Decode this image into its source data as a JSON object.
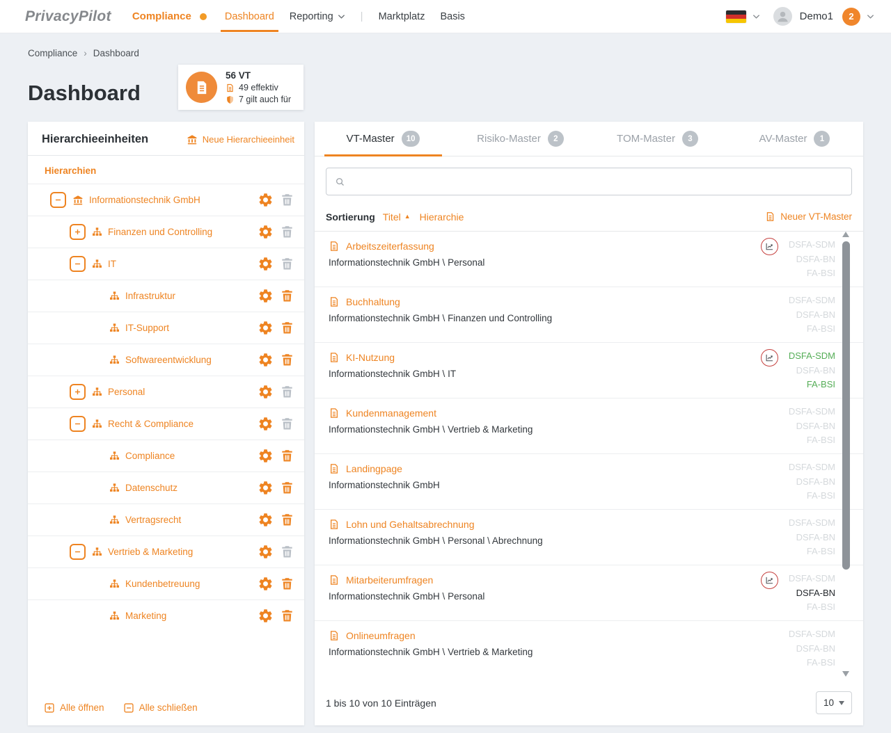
{
  "colors": {
    "accent_orange": "#ee8422",
    "badge_green": "#54ad56",
    "badge_gray": "#d5d9dc",
    "badge_dark": "#25292d",
    "tab_badge_bg": "#bcc2c8",
    "trend_circle_red": "#c5403e"
  },
  "navbar": {
    "logo": "PrivacyPilot",
    "product": "Compliance",
    "dashboard": "Dashboard",
    "reporting": "Reporting",
    "divider": "|",
    "marktplatz": "Marktplatz",
    "basis": "Basis",
    "user_name": "Demo1",
    "notification_count": "2"
  },
  "breadcrumb": {
    "parent": "Compliance",
    "separator": "›",
    "current": "Dashboard"
  },
  "page_title": "Dashboard",
  "stats_card": {
    "total": "56 VT",
    "effective": "49 effektiv",
    "also_applies": "7 gilt auch für"
  },
  "left_panel": {
    "title": "Hierarchieeinheiten",
    "new_link": "Neue Hierarchieeinheit",
    "group_label": "Hierarchien",
    "tree": [
      {
        "label": "Informationstechnik GmbH",
        "level": 0,
        "toggle": "minus",
        "icon": "bank",
        "deletable": false
      },
      {
        "label": "Finanzen und Controlling",
        "level": 1,
        "toggle": "plus",
        "icon": "sitemap",
        "deletable": false
      },
      {
        "label": "IT",
        "level": 1,
        "toggle": "minus",
        "icon": "sitemap",
        "deletable": false
      },
      {
        "label": "Infrastruktur",
        "level": 2,
        "toggle": null,
        "icon": "sitemap",
        "deletable": true
      },
      {
        "label": "IT-Support",
        "level": 2,
        "toggle": null,
        "icon": "sitemap",
        "deletable": true
      },
      {
        "label": "Softwareentwicklung",
        "level": 2,
        "toggle": null,
        "icon": "sitemap",
        "deletable": true
      },
      {
        "label": "Personal",
        "level": 1,
        "toggle": "plus",
        "icon": "sitemap",
        "deletable": false
      },
      {
        "label": "Recht & Compliance",
        "level": 1,
        "toggle": "minus",
        "icon": "sitemap",
        "deletable": false
      },
      {
        "label": "Compliance",
        "level": 2,
        "toggle": null,
        "icon": "sitemap",
        "deletable": true
      },
      {
        "label": "Datenschutz",
        "level": 2,
        "toggle": null,
        "icon": "sitemap",
        "deletable": true
      },
      {
        "label": "Vertragsrecht",
        "level": 2,
        "toggle": null,
        "icon": "sitemap",
        "deletable": true
      },
      {
        "label": "Vertrieb & Marketing",
        "level": 1,
        "toggle": "minus",
        "icon": "sitemap",
        "deletable": false
      },
      {
        "label": "Kundenbetreuung",
        "level": 2,
        "toggle": null,
        "icon": "sitemap",
        "deletable": true
      },
      {
        "label": "Marketing",
        "level": 2,
        "toggle": null,
        "icon": "sitemap",
        "deletable": true
      }
    ],
    "open_all": "Alle öffnen",
    "close_all": "Alle schließen"
  },
  "right_panel": {
    "tabs": [
      {
        "label": "VT-Master",
        "count": "10",
        "active": true
      },
      {
        "label": "Risiko-Master",
        "count": "2",
        "active": false
      },
      {
        "label": "TOM-Master",
        "count": "3",
        "active": false
      },
      {
        "label": "AV-Master",
        "count": "1",
        "active": false
      }
    ],
    "search": {
      "placeholder": "",
      "value": ""
    },
    "sort": {
      "label": "Sortierung",
      "title_option": "Titel",
      "title_arrow": "▲",
      "hierarchy_option": "Hierarchie"
    },
    "new_link": "Neuer VT-Master",
    "badge_names": [
      "DSFA-SDM",
      "DSFA-BN",
      "FA-BSI"
    ],
    "rows": [
      {
        "title": "Arbeitszeiterfassung",
        "path": "Informationstechnik GmbH \\ Personal",
        "trend_icon": true,
        "badges": [
          "gray",
          "gray",
          "gray"
        ]
      },
      {
        "title": "Buchhaltung",
        "path": "Informationstechnik GmbH \\ Finanzen und Controlling",
        "trend_icon": false,
        "badges": [
          "gray",
          "gray",
          "gray"
        ]
      },
      {
        "title": "KI-Nutzung",
        "path": "Informationstechnik GmbH \\ IT",
        "trend_icon": true,
        "badges": [
          "green",
          "gray",
          "green"
        ]
      },
      {
        "title": "Kundenmanagement",
        "path": "Informationstechnik GmbH \\ Vertrieb & Marketing",
        "trend_icon": false,
        "badges": [
          "gray",
          "gray",
          "gray"
        ]
      },
      {
        "title": "Landingpage",
        "path": "Informationstechnik GmbH",
        "trend_icon": false,
        "badges": [
          "gray",
          "gray",
          "gray"
        ]
      },
      {
        "title": "Lohn und Gehaltsabrechnung",
        "path": "Informationstechnik GmbH \\ Personal \\ Abrechnung",
        "trend_icon": false,
        "badges": [
          "gray",
          "gray",
          "gray"
        ]
      },
      {
        "title": "Mitarbeiterumfragen",
        "path": "Informationstechnik GmbH \\ Personal",
        "trend_icon": true,
        "badges": [
          "gray",
          "dark",
          "gray"
        ]
      },
      {
        "title": "Onlineumfragen",
        "path": "Informationstechnik GmbH \\ Vertrieb & Marketing",
        "trend_icon": false,
        "badges": [
          "gray",
          "gray",
          "gray"
        ]
      }
    ],
    "footer": {
      "summary": "1 bis 10 von 10 Einträgen",
      "page_size": "10"
    }
  }
}
